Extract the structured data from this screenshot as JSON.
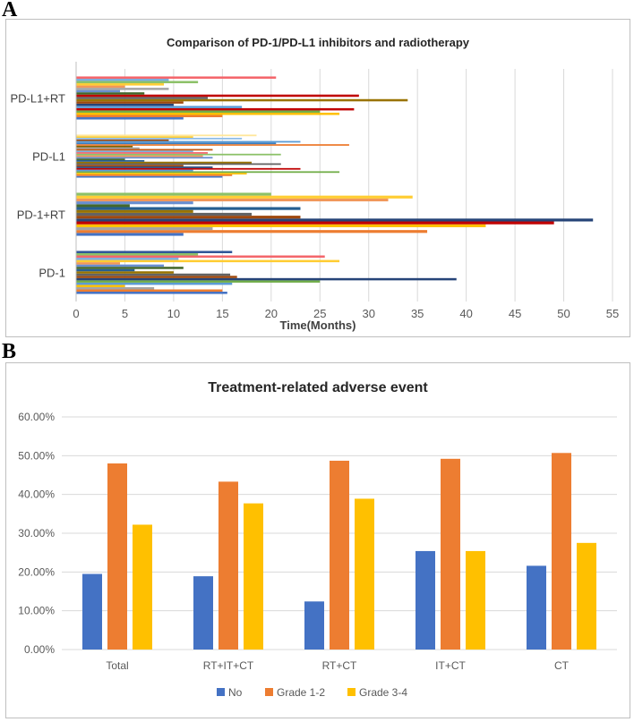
{
  "panels": {
    "a_letter": "A",
    "b_letter": "B"
  },
  "chart_data": [
    {
      "type": "bar",
      "orientation": "horizontal",
      "title": "Comparison of PD-1/PD-L1 inhibitors and radiotherapy",
      "xlabel": "Time(Months)",
      "ylabel": "",
      "xlim": [
        0,
        55
      ],
      "xticks": [
        0,
        5,
        10,
        15,
        20,
        25,
        30,
        35,
        40,
        45,
        50,
        55
      ],
      "grid": true,
      "legend": "none",
      "categories": [
        "PD-1",
        "PD-1+RT",
        "PD-L1",
        "PD-L1+RT"
      ],
      "groups": [
        {
          "name": "PD-1",
          "values": [
            15.5,
            15,
            8,
            5,
            16,
            25,
            39,
            16.5,
            15.8,
            10,
            6,
            11,
            9,
            4.5,
            27,
            10.5,
            25.5,
            12.5,
            16
          ],
          "colors": [
            "#4472c4",
            "#ed7d31",
            "#a5a5a5",
            "#ffc000",
            "#5b9bd5",
            "#70ad47",
            "#264478",
            "#9e480e",
            "#636363",
            "#997300",
            "#255e91",
            "#43682b",
            "#698ed0",
            "#f1975a",
            "#ffcd33",
            "#7cafdd",
            "#f4666b",
            "#8cc168",
            "#2f5597"
          ]
        },
        {
          "name": "PD-1+RT",
          "values": [
            11,
            36,
            14,
            42,
            49,
            53,
            23,
            18,
            12,
            23,
            5.5,
            12,
            32,
            34.5,
            20
          ],
          "colors": [
            "#4472c4",
            "#ed7d31",
            "#a5a5a5",
            "#ffc000",
            "#c00000",
            "#264478",
            "#9e480e",
            "#636363",
            "#997300",
            "#255e91",
            "#43682b",
            "#698ed0",
            "#f1975a",
            "#ffcd33",
            "#8cc168"
          ]
        },
        {
          "name": "PD-L1",
          "values": [
            15,
            16,
            17.5,
            27,
            12,
            23,
            14,
            11,
            21,
            18,
            7,
            5,
            14,
            13,
            21,
            13.5,
            12,
            14,
            6.5,
            5.8,
            28,
            20.5,
            23,
            9.5,
            17,
            12,
            18.5
          ],
          "colors": [
            "#4472c4",
            "#ed7d31",
            "#ffc000",
            "#70ad47",
            "#5b9bd5",
            "#c00000",
            "#264478",
            "#9e480e",
            "#636363",
            "#997300",
            "#255e91",
            "#43682b",
            "#698ed0",
            "#f1975a",
            "#8cc168",
            "#f4666b",
            "#7cafdd",
            "#c55a11",
            "#a5a5a5",
            "#7f6000",
            "#ed7d31",
            "#3a7dbf",
            "#5b9bd5",
            "#9e480e",
            "#8fbde8",
            "#ffcd33",
            "#ffe699"
          ]
        },
        {
          "name": "PD-L1+RT",
          "values": [
            11,
            15,
            27,
            25,
            28.5,
            17,
            10,
            11,
            34,
            13.5,
            29,
            7,
            4.5,
            9.5,
            5,
            9,
            12.5,
            9.5,
            20.5
          ],
          "colors": [
            "#4472c4",
            "#ed7d31",
            "#ffc000",
            "#70ad47",
            "#c00000",
            "#5b9bd5",
            "#264478",
            "#9e480e",
            "#997300",
            "#636363",
            "#c00000",
            "#43682b",
            "#698ed0",
            "#a5a5a5",
            "#f1975a",
            "#ffcd33",
            "#8cc168",
            "#7cafdd",
            "#f4666b"
          ]
        }
      ]
    },
    {
      "type": "bar",
      "title": "Treatment-related adverse event",
      "xlabel": "",
      "ylabel": "",
      "ylim": [
        0,
        0.6
      ],
      "yticks": [
        "0.00%",
        "10.00%",
        "20.00%",
        "30.00%",
        "40.00%",
        "50.00%",
        "60.00%"
      ],
      "grid": true,
      "legend": "bottom-center",
      "categories": [
        "Total",
        "RT+IT+CT",
        "RT+CT",
        "IT+CT",
        "CT"
      ],
      "series": [
        {
          "name": "No",
          "color": "#4472c4",
          "values": [
            0.195,
            0.189,
            0.124,
            0.254,
            0.216
          ]
        },
        {
          "name": "Grade 1-2",
          "color": "#ed7d31",
          "values": [
            0.48,
            0.433,
            0.487,
            0.492,
            0.507
          ]
        },
        {
          "name": "Grade 3-4",
          "color": "#ffc000",
          "values": [
            0.322,
            0.377,
            0.389,
            0.254,
            0.275
          ]
        }
      ]
    }
  ]
}
